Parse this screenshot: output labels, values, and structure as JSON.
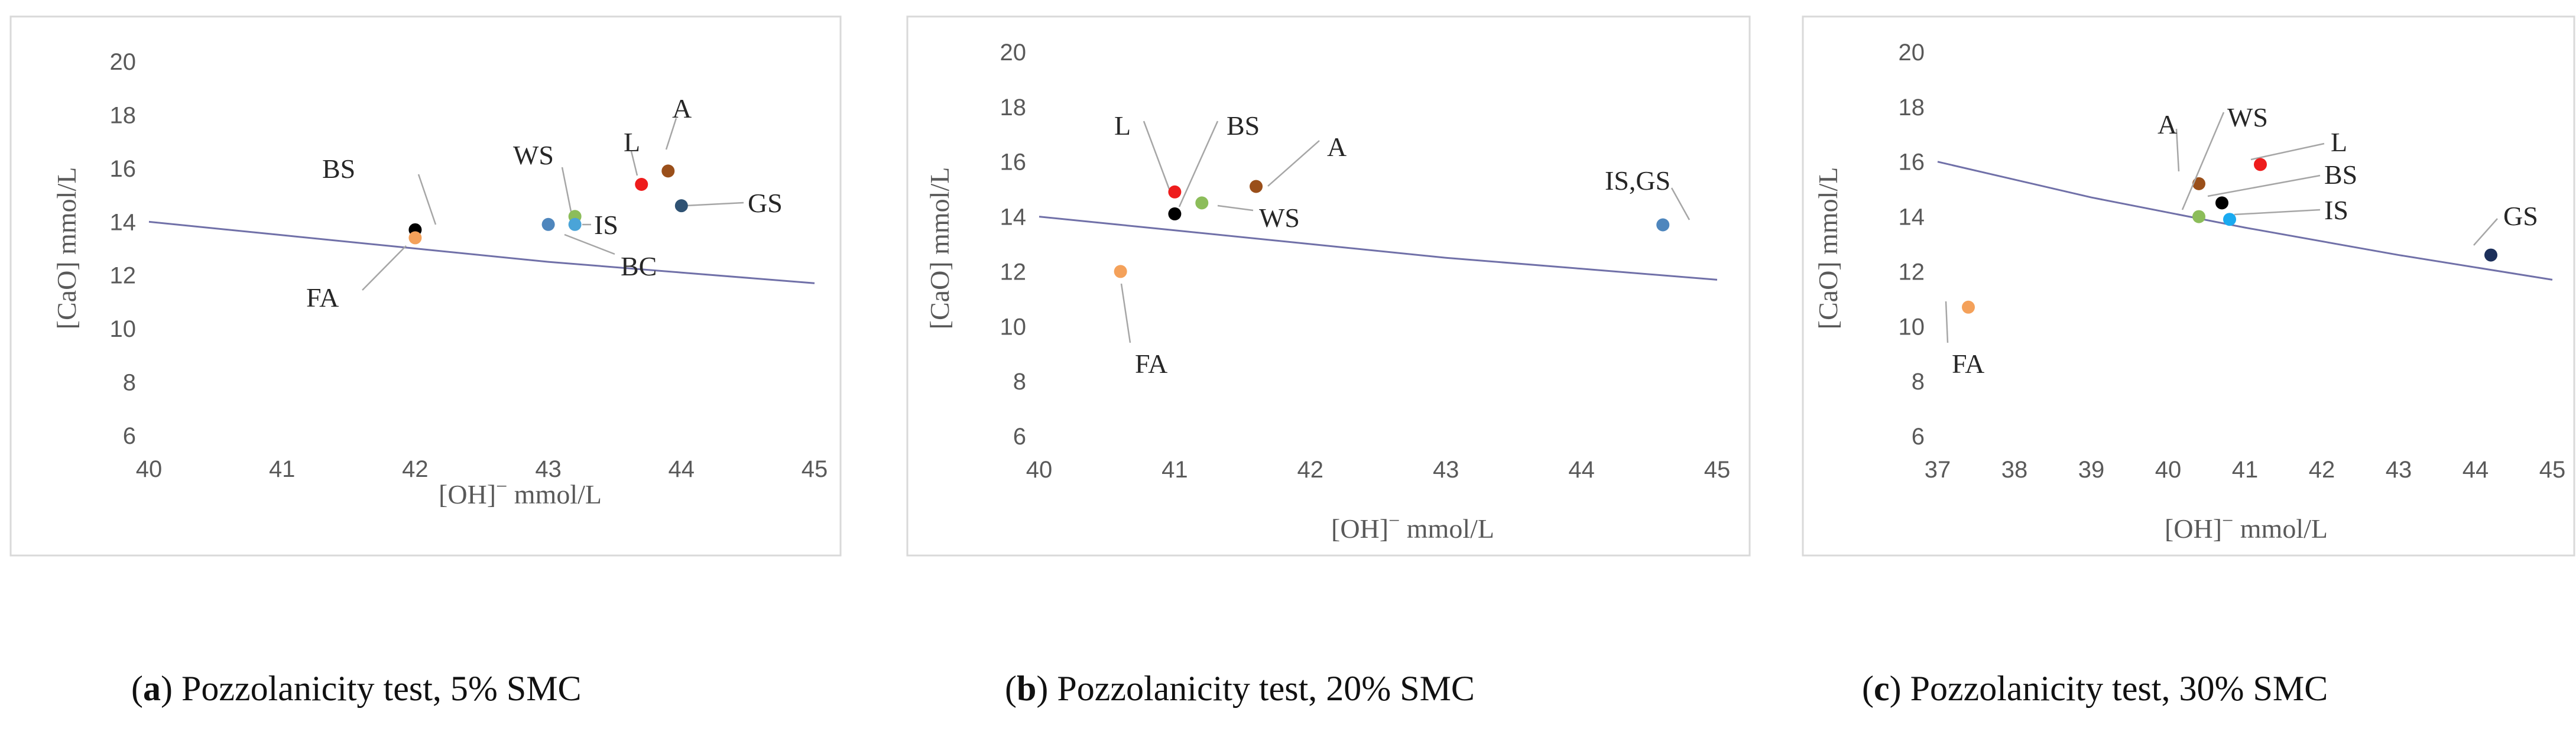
{
  "styles": {
    "limit_line_color": "#7070a8",
    "leader_color": "#a6a6a6"
  },
  "chart_data": [
    {
      "type": "scatter",
      "xlabel": "[OH]",
      "xlabel_sup": "−",
      "xlabel_unit": " mmol/L",
      "ylabel": "[CaO] mmol/L",
      "xlim": [
        40,
        45
      ],
      "ylim": [
        6,
        20
      ],
      "xticks": [
        40,
        41,
        42,
        43,
        44,
        45
      ],
      "yticks": [
        6,
        8,
        10,
        12,
        14,
        16,
        18,
        20
      ],
      "limit_curve": {
        "x": [
          40,
          41,
          42,
          43,
          44,
          45
        ],
        "y": [
          14.0,
          13.5,
          13.0,
          12.5,
          12.1,
          11.7
        ]
      },
      "caption_letter": "a",
      "caption": ") Pozzolanicity test, 5% SMC",
      "points": [
        {
          "name": "BS",
          "x": 42.0,
          "y": 13.7,
          "color": "#000000"
        },
        {
          "name": "FA",
          "x": 42.0,
          "y": 13.4,
          "color": "#f4a15a"
        },
        {
          "name": "BC",
          "x": 43.0,
          "y": 13.9,
          "color": "#4e86bd"
        },
        {
          "name": "WS",
          "x": 43.2,
          "y": 14.2,
          "color": "#8cbd5a"
        },
        {
          "name": "IS",
          "x": 43.2,
          "y": 13.9,
          "color": "#4aa4d8"
        },
        {
          "name": "L",
          "x": 43.7,
          "y": 15.4,
          "color": "#ee1c1c"
        },
        {
          "name": "A",
          "x": 43.9,
          "y": 15.9,
          "color": "#9a4f1a"
        },
        {
          "name": "GS",
          "x": 44.0,
          "y": 14.6,
          "color": "#2f5273"
        }
      ]
    },
    {
      "type": "scatter",
      "xlabel": "[OH]",
      "xlabel_sup": "−",
      "xlabel_unit": " mmol/L",
      "ylabel": "[CaO] mmol/L",
      "xlim": [
        40,
        45
      ],
      "ylim": [
        6,
        20
      ],
      "xticks": [
        40,
        41,
        42,
        43,
        44,
        45
      ],
      "yticks": [
        6,
        8,
        10,
        12,
        14,
        16,
        18,
        20
      ],
      "limit_curve": {
        "x": [
          40,
          41,
          42,
          43,
          44,
          45
        ],
        "y": [
          14.0,
          13.5,
          13.0,
          12.5,
          12.1,
          11.7
        ]
      },
      "caption_letter": "b",
      "caption": ") Pozzolanicity test, 20% SMC",
      "points": [
        {
          "name": "FA",
          "x": 40.6,
          "y": 12.0,
          "color": "#f4a15a"
        },
        {
          "name": "L",
          "x": 41.0,
          "y": 14.9,
          "color": "#ee1c1c"
        },
        {
          "name": "BS",
          "x": 41.0,
          "y": 14.1,
          "color": "#000000"
        },
        {
          "name": "WS",
          "x": 41.2,
          "y": 14.5,
          "color": "#8cbd5a"
        },
        {
          "name": "A",
          "x": 41.6,
          "y": 15.1,
          "color": "#9a4f1a"
        },
        {
          "name": "IS,GS",
          "x": 44.6,
          "y": 13.7,
          "color": "#4e86bd"
        }
      ]
    },
    {
      "type": "scatter",
      "xlabel": "[OH]",
      "xlabel_sup": "−",
      "xlabel_unit": " mmol/L",
      "ylabel": "[CaO] mmol/L",
      "xlim": [
        37,
        45
      ],
      "ylim": [
        6,
        20
      ],
      "xticks": [
        37,
        38,
        39,
        40,
        41,
        42,
        43,
        44,
        45
      ],
      "yticks": [
        6,
        8,
        10,
        12,
        14,
        16,
        18,
        20
      ],
      "limit_curve": {
        "x": [
          37,
          39,
          41,
          43,
          45
        ],
        "y": [
          16.0,
          14.7,
          13.6,
          12.6,
          11.7
        ]
      },
      "caption_letter": "c",
      "caption": ") Pozzolanicity test, 30% SMC",
      "points": [
        {
          "name": "FA",
          "x": 37.4,
          "y": 10.7,
          "color": "#f4a15a"
        },
        {
          "name": "A",
          "x": 40.4,
          "y": 15.2,
          "color": "#9a4f1a"
        },
        {
          "name": "WS",
          "x": 40.4,
          "y": 14.0,
          "color": "#8cbd5a"
        },
        {
          "name": "BS",
          "x": 40.7,
          "y": 14.5,
          "color": "#000000"
        },
        {
          "name": "IS",
          "x": 40.8,
          "y": 13.9,
          "color": "#1aaaf0"
        },
        {
          "name": "L",
          "x": 41.2,
          "y": 15.9,
          "color": "#ee1c1c"
        },
        {
          "name": "GS",
          "x": 44.2,
          "y": 12.6,
          "color": "#1c2f5a"
        }
      ]
    }
  ]
}
